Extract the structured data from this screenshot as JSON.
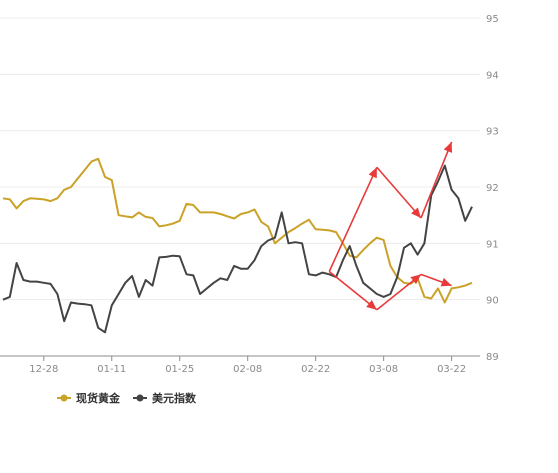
{
  "chart_data": {
    "type": "line",
    "title": "",
    "xlabel": "",
    "ylabel": "",
    "ylim": [
      89,
      95
    ],
    "yticks": [
      89,
      90,
      91,
      92,
      93,
      94,
      95
    ],
    "xticks": [
      "12-28",
      "01-11",
      "01-25",
      "02-08",
      "02-22",
      "03-08",
      "03-22"
    ],
    "xtick_positions": [
      6,
      16,
      26,
      36,
      46,
      56,
      66
    ],
    "x_count": 70,
    "grid": "horizontal",
    "legend_position": "bottom-left",
    "series": [
      {
        "name": "现货黄金",
        "color": "#c9a227",
        "values": [
          91.8,
          91.78,
          91.62,
          91.75,
          91.8,
          91.79,
          91.78,
          91.75,
          91.8,
          91.95,
          92.0,
          92.15,
          92.3,
          92.45,
          92.5,
          92.18,
          92.12,
          91.5,
          91.48,
          91.46,
          91.55,
          91.47,
          91.45,
          91.3,
          91.32,
          91.35,
          91.4,
          91.7,
          91.68,
          91.55,
          91.55,
          91.55,
          91.52,
          91.48,
          91.44,
          91.52,
          91.55,
          91.6,
          91.38,
          91.3,
          91.0,
          91.1,
          91.2,
          91.27,
          91.35,
          91.42,
          91.25,
          91.24,
          91.23,
          91.2,
          91.0,
          90.78,
          90.75,
          90.88,
          91.0,
          91.1,
          91.06,
          90.6,
          90.4,
          90.3,
          90.28,
          90.38,
          90.05,
          90.02,
          90.2,
          89.95,
          90.2,
          90.22,
          90.25,
          90.3
        ]
      },
      {
        "name": "美元指数",
        "color": "#444444",
        "values": [
          90.0,
          90.05,
          90.65,
          90.35,
          90.32,
          90.32,
          90.3,
          90.28,
          90.1,
          89.62,
          89.95,
          89.93,
          89.92,
          89.9,
          89.5,
          89.42,
          89.9,
          90.1,
          90.3,
          90.42,
          90.05,
          90.35,
          90.25,
          90.75,
          90.76,
          90.78,
          90.77,
          90.45,
          90.43,
          90.1,
          90.2,
          90.3,
          90.38,
          90.35,
          90.6,
          90.55,
          90.55,
          90.7,
          90.95,
          91.05,
          91.1,
          91.55,
          91.0,
          91.02,
          91.0,
          90.45,
          90.43,
          90.48,
          90.45,
          90.4,
          90.7,
          90.95,
          90.6,
          90.3,
          90.2,
          90.1,
          90.05,
          90.1,
          90.4,
          90.92,
          91.0,
          90.8,
          91.0,
          91.85,
          92.1,
          92.38,
          91.95,
          91.8,
          91.4,
          91.65
        ]
      }
    ],
    "annotation_arrows": {
      "color": "#e83a3a",
      "segments": [
        [
          [
            48,
            90.5
          ],
          [
            55,
            92.35
          ]
        ],
        [
          [
            55,
            92.35
          ],
          [
            61.5,
            91.45
          ]
        ],
        [
          [
            61.5,
            91.45
          ],
          [
            66,
            92.8
          ]
        ],
        [
          [
            48,
            90.5
          ],
          [
            55,
            89.82
          ]
        ],
        [
          [
            55,
            89.82
          ],
          [
            61.5,
            90.45
          ]
        ],
        [
          [
            61.5,
            90.45
          ],
          [
            66,
            90.25
          ]
        ]
      ]
    }
  },
  "legend": {
    "gold_label": "现货黄金",
    "usd_label": "美元指数"
  }
}
